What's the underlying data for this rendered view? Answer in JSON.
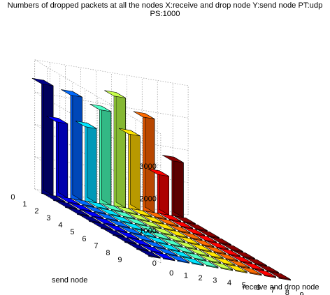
{
  "chart_data": {
    "type": "bar3",
    "title_lines": [
      "Numbers of dropped packets at all the nodes X:receive and drop node Y:send node PT:udp",
      "PS:1000"
    ],
    "xlabel": "receive and drop node",
    "ylabel": "send node",
    "zlabel": "",
    "x_ticks": [
      "0",
      "1",
      "2",
      "3",
      "4",
      "5",
      "6",
      "7",
      "8",
      "9"
    ],
    "y_ticks": [
      "0",
      "1",
      "2",
      "3",
      "4",
      "5",
      "6",
      "7",
      "8",
      "9"
    ],
    "z_ticks": [
      "0",
      "1000",
      "2000",
      "3000"
    ],
    "zlim": [
      0,
      4000
    ],
    "grid": true,
    "colormap": "jet",
    "bars": [
      {
        "x": 0,
        "y": 0,
        "value": 3400
      },
      {
        "x": 1,
        "y": 0,
        "value": 2300
      },
      {
        "x": 2,
        "y": 0,
        "value": 3200
      },
      {
        "x": 3,
        "y": 0,
        "value": 2300
      },
      {
        "x": 4,
        "y": 0,
        "value": 2900
      },
      {
        "x": 5,
        "y": 0,
        "value": 3400
      },
      {
        "x": 6,
        "y": 0,
        "value": 2300
      },
      {
        "x": 7,
        "y": 0,
        "value": 2900
      },
      {
        "x": 8,
        "y": 0,
        "value": 1200
      },
      {
        "x": 9,
        "y": 0,
        "value": 1700
      }
    ],
    "other_cells_value": 0
  },
  "colors": {
    "background": "#ffffff",
    "grid": "#9a9a9a",
    "bar_edge": "#000000"
  }
}
